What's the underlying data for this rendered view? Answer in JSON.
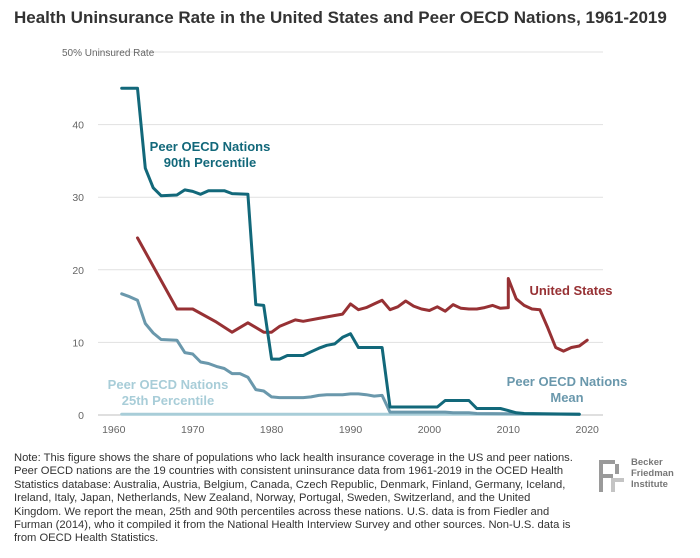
{
  "title": "Health Uninsurance Rate in the United States and Peer OECD Nations, 1961-2019",
  "chart_data": {
    "type": "line",
    "title": "Health Uninsurance Rate in the United States and Peer OECD Nations, 1961-2019",
    "ylabel": "50% Uninsured Rate",
    "xlim": [
      1958,
      2022
    ],
    "ylim": [
      0,
      50
    ],
    "x_ticks": [
      1960,
      1970,
      1980,
      1990,
      2000,
      2010,
      2020
    ],
    "y_ticks": [
      0,
      10,
      20,
      30,
      40
    ],
    "y_top_label": "50% Uninsured Rate",
    "grid": "horizontal",
    "legend": "inline-labels",
    "series": [
      {
        "name": "United States",
        "label_lines": [
          "United States"
        ],
        "color": "#973134",
        "points": [
          [
            1963,
            24.4
          ],
          [
            1968,
            14.6
          ],
          [
            1970,
            14.6
          ],
          [
            1973,
            12.8
          ],
          [
            1975,
            11.4
          ],
          [
            1977,
            12.7
          ],
          [
            1979,
            11.4
          ],
          [
            1980,
            11.4
          ],
          [
            1981,
            12.2
          ],
          [
            1983,
            13.1
          ],
          [
            1984,
            12.9
          ],
          [
            1986,
            13.3
          ],
          [
            1988,
            13.7
          ],
          [
            1989,
            13.9
          ],
          [
            1990,
            15.3
          ],
          [
            1991,
            14.5
          ],
          [
            1992,
            14.8
          ],
          [
            1993,
            15.3
          ],
          [
            1994,
            15.8
          ],
          [
            1995,
            14.5
          ],
          [
            1996,
            14.9
          ],
          [
            1997,
            15.7
          ],
          [
            1998,
            15.0
          ],
          [
            1999,
            14.6
          ],
          [
            2000,
            14.4
          ],
          [
            2001,
            14.9
          ],
          [
            2002,
            14.3
          ],
          [
            2003,
            15.2
          ],
          [
            2004,
            14.7
          ],
          [
            2005,
            14.6
          ],
          [
            2006,
            14.6
          ],
          [
            2007,
            14.8
          ],
          [
            2008,
            15.1
          ],
          [
            2009,
            14.7
          ],
          [
            2010,
            14.8
          ],
          [
            2010,
            18.8
          ],
          [
            2011,
            16.0
          ],
          [
            2012,
            15.1
          ],
          [
            2013,
            14.6
          ],
          [
            2014,
            14.5
          ],
          [
            2015,
            12.0
          ],
          [
            2016,
            9.3
          ],
          [
            2017,
            8.8
          ],
          [
            2018,
            9.3
          ],
          [
            2019,
            9.5
          ],
          [
            2020,
            10.3
          ]
        ]
      },
      {
        "name": "Peer OECD Nations 90th Percentile",
        "label_lines": [
          "Peer OECD Nations",
          "90th Percentile"
        ],
        "color": "#12687a",
        "points": [
          [
            1961,
            45
          ],
          [
            1963,
            45
          ],
          [
            1964,
            34.0
          ],
          [
            1965,
            31.3
          ],
          [
            1966,
            30.2
          ],
          [
            1968,
            30.3
          ],
          [
            1969,
            31.0
          ],
          [
            1970,
            30.8
          ],
          [
            1971,
            30.4
          ],
          [
            1972,
            30.9
          ],
          [
            1974,
            30.9
          ],
          [
            1975,
            30.5
          ],
          [
            1977,
            30.4
          ],
          [
            1978,
            15.2
          ],
          [
            1979,
            15.1
          ],
          [
            1980,
            7.7
          ],
          [
            1981,
            7.7
          ],
          [
            1982,
            8.2
          ],
          [
            1983,
            8.2
          ],
          [
            1984,
            8.2
          ],
          [
            1985,
            8.7
          ],
          [
            1986,
            9.2
          ],
          [
            1987,
            9.6
          ],
          [
            1988,
            9.8
          ],
          [
            1989,
            10.7
          ],
          [
            1990,
            11.2
          ],
          [
            1991,
            9.3
          ],
          [
            1994,
            9.3
          ],
          [
            1995,
            1.1
          ],
          [
            2001,
            1.1
          ],
          [
            2002,
            2.0
          ],
          [
            2005,
            2.0
          ],
          [
            2006,
            0.9
          ],
          [
            2009,
            0.9
          ],
          [
            2010,
            0.6
          ],
          [
            2011,
            0.3
          ],
          [
            2012,
            0.2
          ],
          [
            2019,
            0.1
          ]
        ]
      },
      {
        "name": "Peer OECD Nations Mean",
        "label_lines": [
          "Peer OECD Nations",
          "Mean"
        ],
        "color": "#6a98ac",
        "points": [
          [
            1961,
            16.7
          ],
          [
            1962,
            16.3
          ],
          [
            1963,
            15.8
          ],
          [
            1964,
            12.6
          ],
          [
            1965,
            11.3
          ],
          [
            1966,
            10.4
          ],
          [
            1968,
            10.3
          ],
          [
            1969,
            8.6
          ],
          [
            1970,
            8.4
          ],
          [
            1971,
            7.3
          ],
          [
            1972,
            7.1
          ],
          [
            1973,
            6.7
          ],
          [
            1974,
            6.4
          ],
          [
            1975,
            5.7
          ],
          [
            1976,
            5.7
          ],
          [
            1977,
            5.2
          ],
          [
            1978,
            3.5
          ],
          [
            1979,
            3.3
          ],
          [
            1980,
            2.5
          ],
          [
            1981,
            2.4
          ],
          [
            1983,
            2.4
          ],
          [
            1984,
            2.4
          ],
          [
            1985,
            2.5
          ],
          [
            1986,
            2.7
          ],
          [
            1987,
            2.8
          ],
          [
            1988,
            2.8
          ],
          [
            1989,
            2.8
          ],
          [
            1990,
            2.9
          ],
          [
            1991,
            2.9
          ],
          [
            1992,
            2.8
          ],
          [
            1993,
            2.6
          ],
          [
            1994,
            2.7
          ],
          [
            1995,
            0.4
          ],
          [
            2001,
            0.4
          ],
          [
            2002,
            0.4
          ],
          [
            2003,
            0.3
          ],
          [
            2005,
            0.3
          ],
          [
            2006,
            0.2
          ],
          [
            2019,
            0.1
          ]
        ]
      },
      {
        "name": "Peer OECD Nations 25th Percentile",
        "label_lines": [
          "Peer OECD Nations",
          "25th Percentile"
        ],
        "color": "#a8cdd8",
        "points": [
          [
            1961,
            0.1
          ],
          [
            2019,
            0.1
          ]
        ]
      }
    ]
  },
  "note": "Note: This figure shows the share of populations who lack health insurance coverage in the US and peer nations. Peer OECD nations are the 19 countries with consistent uninsurance data from 1961-2019 in the OCED Health Statistics database: Australia, Austria, Belgium, Canada, Czech Republic, Denmark, Finland, Germany, Iceland, Ireland, Italy, Japan, Netherlands, New Zealand, Norway, Portugal, Sweden, Switzerland, and the United Kingdom. We report the mean, 25th and 90th percentiles across these nations. U.S. data is from Fiedler and Furman (2014), who it compiled it from the National Health Interview Survey and other sources. Non-U.S. data is from OECD Health Statistics.",
  "logo": {
    "lines": [
      "Becker",
      "Friedman",
      "Institute"
    ],
    "icon": "bfi-logo-mark",
    "color": "#9a9a9a"
  }
}
